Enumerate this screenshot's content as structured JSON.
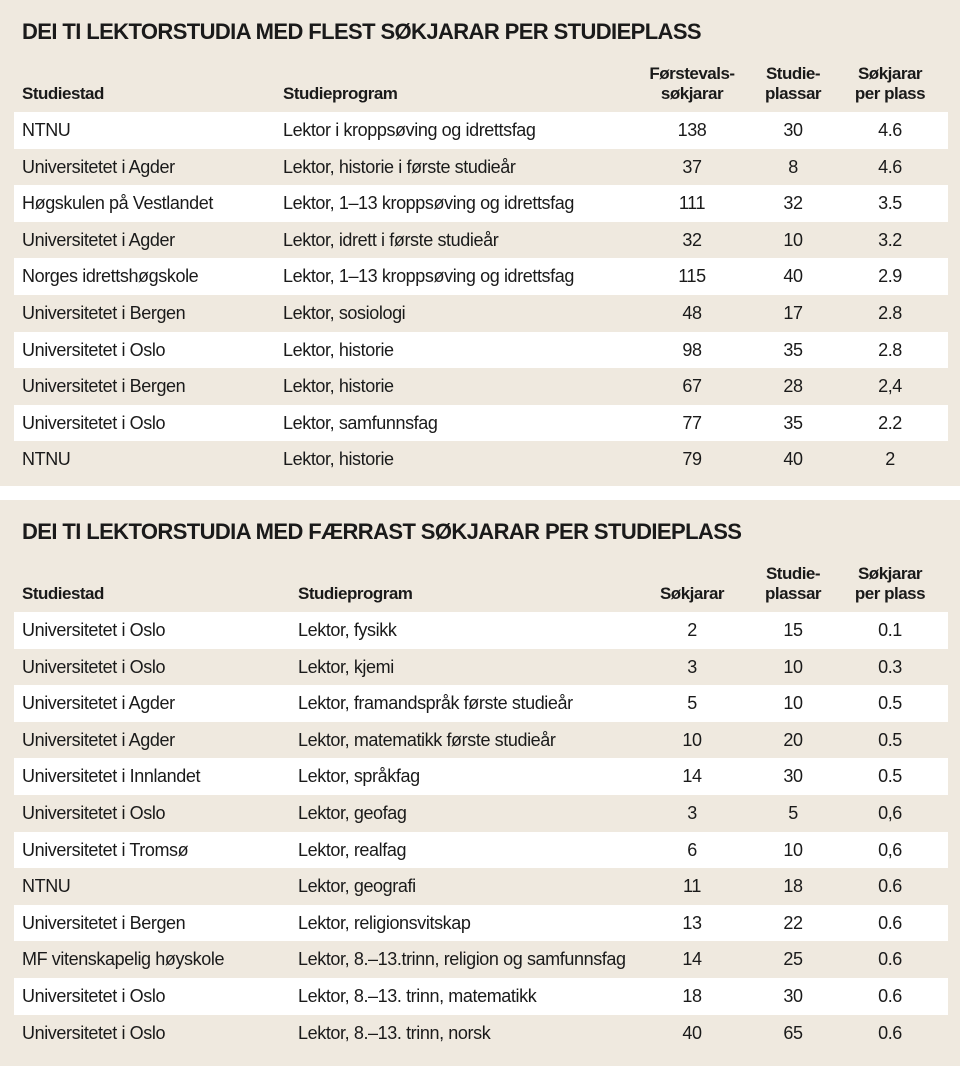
{
  "tables": [
    {
      "title": "DEI TI LEKTORSTUDIA MED FLEST SØKJARAR PER STUDIEPLASS",
      "headers": [
        "Studiestad",
        "Studieprogram",
        "Førstevals-\nsøkjarar",
        "Studie-\nplassar",
        "Søkjarar\nper plass"
      ],
      "rows": [
        [
          "NTNU",
          "Lektor i kroppsøving og idrettsfag",
          "138",
          "30",
          "4.6"
        ],
        [
          "Universitetet i Agder",
          "Lektor, historie i første studieår",
          "37",
          "8",
          "4.6"
        ],
        [
          "Høgskulen på Vestlandet",
          "Lektor, 1–13 kroppsøving og idrettsfag",
          "111",
          "32",
          "3.5"
        ],
        [
          "Universitetet i Agder",
          "Lektor, idrett i første studieår",
          "32",
          "10",
          "3.2"
        ],
        [
          "Norges idrettshøgskole",
          "Lektor, 1–13 kroppsøving og idrettsfag",
          "115",
          "40",
          "2.9"
        ],
        [
          "Universitetet i Bergen",
          "Lektor, sosiologi",
          "48",
          "17",
          "2.8"
        ],
        [
          "Universitetet i Oslo",
          "Lektor, historie",
          "98",
          "35",
          "2.8"
        ],
        [
          "Universitetet i Bergen",
          "Lektor, historie",
          "67",
          "28",
          "2,4"
        ],
        [
          "Universitetet i Oslo",
          "Lektor, samfunnsfag",
          "77",
          "35",
          "2.2"
        ],
        [
          "NTNU",
          "Lektor, historie",
          "79",
          "40",
          "2"
        ]
      ]
    },
    {
      "title": "DEI TI LEKTORSTUDIA MED FÆRRAST SØKJARAR PER STUDIEPLASS",
      "headers": [
        "Studiestad",
        "Studieprogram",
        "Søkjarar",
        "Studie-\nplassar",
        "Søkjarar\nper plass"
      ],
      "rows": [
        [
          "Universitetet i Oslo",
          "Lektor, fysikk",
          "2",
          "15",
          "0.1"
        ],
        [
          "Universitetet i Oslo",
          "Lektor, kjemi",
          "3",
          "10",
          "0.3"
        ],
        [
          "Universitetet i Agder",
          "Lektor, framandspråk første studieår",
          "5",
          "10",
          "0.5"
        ],
        [
          "Universitetet i Agder",
          "Lektor, matematikk første studieår",
          "10",
          "20",
          "0.5"
        ],
        [
          "Universitetet i Innlandet",
          "Lektor, språkfag",
          "14",
          "30",
          "0.5"
        ],
        [
          "Universitetet i Oslo",
          "Lektor, geofag",
          "3",
          "5",
          "0,6"
        ],
        [
          "Universitetet i Tromsø",
          "Lektor, realfag",
          "6",
          "10",
          "0,6"
        ],
        [
          "NTNU",
          "Lektor, geografi",
          "11",
          "18",
          "0.6"
        ],
        [
          "Universitetet i Bergen",
          "Lektor, religionsvitskap",
          "13",
          "22",
          "0.6"
        ],
        [
          "MF vitenskapelig høyskole",
          "Lektor, 8.–13.trinn, religion og samfunnsfag",
          "14",
          "25",
          "0.6"
        ],
        [
          "Universitetet i Oslo",
          "Lektor, 8.–13. trinn, matematikk",
          "18",
          "30",
          "0.6"
        ],
        [
          "Universitetet i Oslo",
          "Lektor, 8.–13. trinn, norsk",
          "40",
          "65",
          "0.6"
        ]
      ]
    }
  ]
}
